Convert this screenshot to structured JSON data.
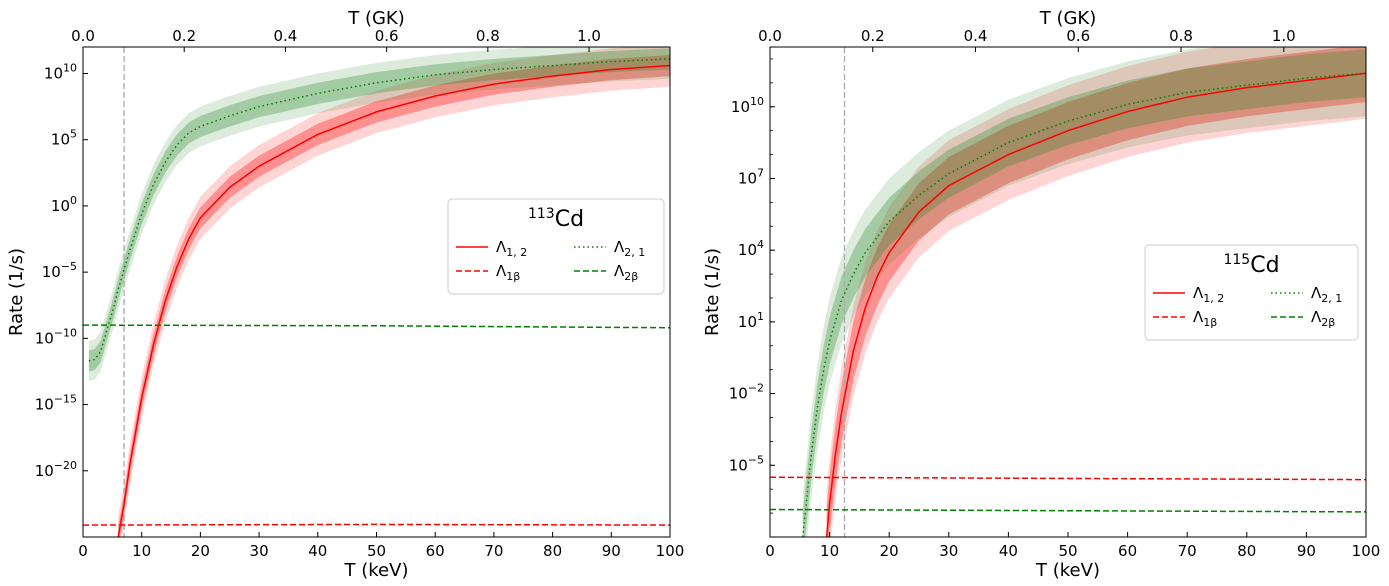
{
  "figure": {
    "background": "#ffffff"
  },
  "chart_data": [
    {
      "type": "line",
      "title": "",
      "xlabel": "T (keV)",
      "ylabel": "Rate (1/s)",
      "secondary_xlabel": "T (GK)",
      "xlim": [
        0,
        100
      ],
      "ylim_log10": [
        -25,
        12
      ],
      "yscale": "log",
      "secondary_xlim_GK": [
        0,
        1.16
      ],
      "x_ticks": [
        "0",
        "10",
        "20",
        "30",
        "40",
        "50",
        "60",
        "70",
        "80",
        "90",
        "100"
      ],
      "secondary_x_ticks": [
        "0.0",
        "0.2",
        "0.4",
        "0.6",
        "0.8",
        "1.0"
      ],
      "y_ticks": [
        {
          "base": "10",
          "exp": "10",
          "log10": 10
        },
        {
          "base": "10",
          "exp": "5",
          "log10": 5
        },
        {
          "base": "10",
          "exp": "0",
          "log10": 0
        },
        {
          "base": "10",
          "exp": "−5",
          "log10": -5
        },
        {
          "base": "10",
          "exp": "−10",
          "log10": -10
        },
        {
          "base": "10",
          "exp": "−15",
          "log10": -15
        },
        {
          "base": "10",
          "exp": "−20",
          "log10": -20
        }
      ],
      "vertical_line": {
        "x": 7,
        "color": "#aaaaaa",
        "style": "dashed"
      },
      "legend": {
        "title_sup": "113",
        "title_base": "Cd",
        "placement": "center-right",
        "entries": [
          {
            "label": "Λ",
            "sub": "1, 2",
            "color": "#ff0000",
            "style": "solid"
          },
          {
            "label": "Λ",
            "sub": "1β",
            "color": "#ff0000",
            "style": "dashed"
          },
          {
            "label": "Λ",
            "sub": "2, 1",
            "color": "#008000",
            "style": "dotted"
          },
          {
            "label": "Λ",
            "sub": "2β",
            "color": "#008000",
            "style": "dashed"
          }
        ]
      },
      "series": [
        {
          "name": "Λ1,2",
          "color": "#ff0000",
          "style": "solid",
          "band_color": "#ff0000",
          "x": [
            6,
            7,
            8,
            10,
            12,
            14,
            16,
            18,
            20,
            25,
            30,
            40,
            50,
            60,
            70,
            80,
            90,
            100
          ],
          "log10_y": [
            -25,
            -22.5,
            -19.5,
            -14.5,
            -10.5,
            -7.2,
            -4.6,
            -2.5,
            -0.9,
            1.4,
            3.0,
            5.4,
            7.1,
            8.3,
            9.2,
            9.8,
            10.3,
            10.6
          ],
          "band_inner": 0.8,
          "band_outer": 1.6
        },
        {
          "name": "Λ2,1",
          "color": "#008000",
          "style": "dotted",
          "band_color": "#2e8b2e",
          "x": [
            1,
            2,
            3,
            4,
            5,
            6,
            7,
            8,
            10,
            12,
            14,
            16,
            18,
            20,
            25,
            30,
            40,
            50,
            60,
            70,
            80,
            90,
            100
          ],
          "log10_y": [
            -11.7,
            -11.6,
            -11,
            -9.5,
            -8,
            -6.3,
            -4.8,
            -3.3,
            -0.6,
            1.6,
            3.3,
            4.6,
            5.5,
            6.0,
            6.8,
            7.5,
            8.5,
            9.3,
            9.9,
            10.3,
            10.6,
            10.9,
            11.1
          ],
          "band_inner": 0.8,
          "band_outer": 1.5
        },
        {
          "name": "Λ1β",
          "color": "#ff0000",
          "style": "dashed",
          "x": [
            0,
            50,
            100
          ],
          "log10_y": [
            -24.1,
            -24.05,
            -24.1
          ]
        },
        {
          "name": "Λ2β",
          "color": "#008000",
          "style": "dashed",
          "x": [
            0,
            50,
            100
          ],
          "log10_y": [
            -9.0,
            -9.05,
            -9.2
          ]
        }
      ]
    },
    {
      "type": "line",
      "title": "",
      "xlabel": "T (keV)",
      "ylabel": "Rate (1/s)",
      "secondary_xlabel": "T (GK)",
      "xlim": [
        0,
        100
      ],
      "ylim_log10": [
        -8,
        12.5
      ],
      "yscale": "log",
      "secondary_xlim_GK": [
        0,
        1.16
      ],
      "x_ticks": [
        "0",
        "10",
        "20",
        "30",
        "40",
        "50",
        "60",
        "70",
        "80",
        "90",
        "100"
      ],
      "secondary_x_ticks": [
        "0.0",
        "0.2",
        "0.4",
        "0.6",
        "0.8",
        "1.0"
      ],
      "y_ticks": [
        {
          "base": "10",
          "exp": "10",
          "log10": 10
        },
        {
          "base": "10",
          "exp": "7",
          "log10": 7
        },
        {
          "base": "10",
          "exp": "4",
          "log10": 4
        },
        {
          "base": "10",
          "exp": "1",
          "log10": 1
        },
        {
          "base": "10",
          "exp": "−2",
          "log10": -2
        },
        {
          "base": "10",
          "exp": "−5",
          "log10": -5
        }
      ],
      "vertical_line": {
        "x": 12.5,
        "color": "#aaaaaa",
        "style": "dashed"
      },
      "legend": {
        "title_sup": "115",
        "title_base": "Cd",
        "placement": "center-right",
        "entries": [
          {
            "label": "Λ",
            "sub": "1, 2",
            "color": "#ff0000",
            "style": "solid"
          },
          {
            "label": "Λ",
            "sub": "1β",
            "color": "#ff0000",
            "style": "dashed"
          },
          {
            "label": "Λ",
            "sub": "2, 1",
            "color": "#008000",
            "style": "dotted"
          },
          {
            "label": "Λ",
            "sub": "2β",
            "color": "#008000",
            "style": "dashed"
          }
        ]
      },
      "series": [
        {
          "name": "Λ1,2",
          "color": "#ff0000",
          "style": "solid",
          "band_color": "#ff0000",
          "x": [
            9.5,
            10,
            11,
            12,
            14,
            16,
            18,
            20,
            25,
            30,
            40,
            50,
            60,
            70,
            80,
            90,
            100
          ],
          "log10_y": [
            -8,
            -6.6,
            -4.5,
            -2.8,
            -0.2,
            1.6,
            2.9,
            3.9,
            5.6,
            6.7,
            8.0,
            9.0,
            9.8,
            10.4,
            10.8,
            11.1,
            11.4
          ],
          "band_inner": 1.2,
          "band_outer": 1.9
        },
        {
          "name": "Λ2,1",
          "color": "#008000",
          "style": "dotted",
          "band_color": "#2e8b2e",
          "x": [
            5.5,
            6,
            7,
            8,
            9,
            10,
            12,
            14,
            16,
            20,
            25,
            30,
            40,
            50,
            60,
            70,
            80,
            90,
            100
          ],
          "log10_y": [
            -8,
            -6.8,
            -4.4,
            -2.5,
            -1.0,
            0.2,
            1.9,
            3.0,
            3.9,
            5.2,
            6.3,
            7.2,
            8.5,
            9.4,
            10.1,
            10.6,
            10.9,
            11.2,
            11.4
          ],
          "band_inner": 1.0,
          "band_outer": 1.8
        },
        {
          "name": "Λ1β",
          "color": "#ff0000",
          "style": "dashed",
          "x": [
            0,
            50,
            100
          ],
          "log10_y": [
            -5.5,
            -5.55,
            -5.6
          ]
        },
        {
          "name": "Λ2β",
          "color": "#008000",
          "style": "dashed",
          "x": [
            0,
            50,
            100
          ],
          "log10_y": [
            -6.85,
            -6.9,
            -6.95
          ]
        }
      ]
    }
  ]
}
